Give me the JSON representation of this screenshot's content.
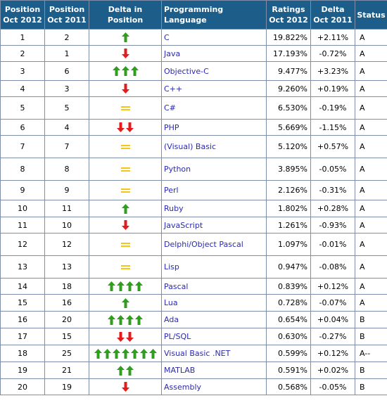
{
  "headers": [
    "Position Oct 2012",
    "Position Oct 2011",
    "Delta in Position",
    "Programming Language",
    "Ratings Oct 2012",
    "Delta Oct 2011",
    "Status"
  ],
  "header_lines": [
    [
      "Position",
      "Oct 2012"
    ],
    [
      "Position",
      "Oct 2011"
    ],
    [
      "Delta in Position"
    ],
    [
      "Programming Language"
    ],
    [
      "Ratings",
      "Oct 2012"
    ],
    [
      "Delta",
      "Oct 2011"
    ],
    [
      "Status"
    ]
  ],
  "colors": {
    "header_bg": "#1c5d8a",
    "border": "#7f8fa9",
    "up": "#2f9e1d",
    "down": "#e31b1b",
    "same": "#f5c518",
    "language": "#2a2ab0"
  },
  "rows": [
    {
      "pos2012": "1",
      "pos2011": "2",
      "trend": "up",
      "count": 1,
      "language": "C",
      "rating": "19.822%",
      "delta": "+2.11%",
      "status": "A"
    },
    {
      "pos2012": "2",
      "pos2011": "1",
      "trend": "down",
      "count": 1,
      "language": "Java",
      "rating": "17.193%",
      "delta": "-0.72%",
      "status": "A"
    },
    {
      "pos2012": "3",
      "pos2011": "6",
      "trend": "up",
      "count": 3,
      "language": "Objective-C",
      "rating": "9.477%",
      "delta": "+3.23%",
      "status": "A"
    },
    {
      "pos2012": "4",
      "pos2011": "3",
      "trend": "down",
      "count": 1,
      "language": "C++",
      "rating": "9.260%",
      "delta": "+0.19%",
      "status": "A"
    },
    {
      "pos2012": "5",
      "pos2011": "5",
      "trend": "same",
      "count": 1,
      "language": "C#",
      "rating": "6.530%",
      "delta": "-0.19%",
      "status": "A"
    },
    {
      "pos2012": "6",
      "pos2011": "4",
      "trend": "down",
      "count": 2,
      "language": "PHP",
      "rating": "5.669%",
      "delta": "-1.15%",
      "status": "A"
    },
    {
      "pos2012": "7",
      "pos2011": "7",
      "trend": "same",
      "count": 1,
      "language": "(Visual) Basic",
      "rating": "5.120%",
      "delta": "+0.57%",
      "status": "A"
    },
    {
      "pos2012": "8",
      "pos2011": "8",
      "trend": "same",
      "count": 1,
      "language": "Python",
      "rating": "3.895%",
      "delta": "-0.05%",
      "status": "A"
    },
    {
      "pos2012": "9",
      "pos2011": "9",
      "trend": "same",
      "count": 1,
      "language": "Perl",
      "rating": "2.126%",
      "delta": "-0.31%",
      "status": "A"
    },
    {
      "pos2012": "10",
      "pos2011": "11",
      "trend": "up",
      "count": 1,
      "language": "Ruby",
      "rating": "1.802%",
      "delta": "+0.28%",
      "status": "A"
    },
    {
      "pos2012": "11",
      "pos2011": "10",
      "trend": "down",
      "count": 1,
      "language": "JavaScript",
      "rating": "1.261%",
      "delta": "-0.93%",
      "status": "A"
    },
    {
      "pos2012": "12",
      "pos2011": "12",
      "trend": "same",
      "count": 1,
      "language": "Delphi/Object Pascal",
      "rating": "1.097%",
      "delta": "-0.01%",
      "status": "A"
    },
    {
      "pos2012": "13",
      "pos2011": "13",
      "trend": "same",
      "count": 1,
      "language": "Lisp",
      "rating": "0.947%",
      "delta": "-0.08%",
      "status": "A"
    },
    {
      "pos2012": "14",
      "pos2011": "18",
      "trend": "up",
      "count": 4,
      "language": "Pascal",
      "rating": "0.839%",
      "delta": "+0.12%",
      "status": "A"
    },
    {
      "pos2012": "15",
      "pos2011": "16",
      "trend": "up",
      "count": 1,
      "language": "Lua",
      "rating": "0.728%",
      "delta": "-0.07%",
      "status": "A"
    },
    {
      "pos2012": "16",
      "pos2011": "20",
      "trend": "up",
      "count": 4,
      "language": "Ada",
      "rating": "0.654%",
      "delta": "+0.04%",
      "status": "B"
    },
    {
      "pos2012": "17",
      "pos2011": "15",
      "trend": "down",
      "count": 2,
      "language": "PL/SQL",
      "rating": "0.630%",
      "delta": "-0.27%",
      "status": "B"
    },
    {
      "pos2012": "18",
      "pos2011": "25",
      "trend": "up",
      "count": 7,
      "language": "Visual Basic .NET",
      "rating": "0.599%",
      "delta": "+0.12%",
      "status": "A--"
    },
    {
      "pos2012": "19",
      "pos2011": "21",
      "trend": "up",
      "count": 2,
      "language": "MATLAB",
      "rating": "0.591%",
      "delta": "+0.02%",
      "status": "B"
    },
    {
      "pos2012": "20",
      "pos2011": "19",
      "trend": "down",
      "count": 1,
      "language": "Assembly",
      "rating": "0.568%",
      "delta": "-0.05%",
      "status": "B"
    }
  ]
}
